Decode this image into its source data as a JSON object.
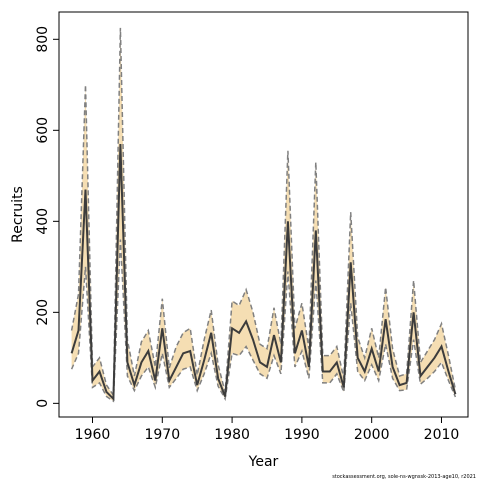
{
  "chart_data": {
    "type": "line",
    "title": "",
    "xlabel": "Year",
    "ylabel": "Recruits",
    "credit": "stockassessment.org, sole-ns-wgnssk-2013-age10, r2021",
    "xlim": [
      1955.2,
      2013.8
    ],
    "ylim": [
      -30,
      860
    ],
    "xticks": [
      1960,
      1970,
      1980,
      1990,
      2000,
      2010
    ],
    "yticks": [
      0,
      200,
      400,
      600,
      800
    ],
    "colors": {
      "band": "#f5deb3",
      "bounds": "#808080",
      "estimate": "#3c3c3c"
    },
    "x": [
      1957,
      1958,
      1959,
      1960,
      1961,
      1962,
      1963,
      1964,
      1965,
      1966,
      1967,
      1968,
      1969,
      1970,
      1971,
      1972,
      1973,
      1974,
      1975,
      1976,
      1977,
      1978,
      1979,
      1980,
      1981,
      1982,
      1983,
      1984,
      1985,
      1986,
      1987,
      1988,
      1989,
      1990,
      1991,
      1992,
      1993,
      1994,
      1995,
      1996,
      1997,
      1998,
      1999,
      2000,
      2001,
      2002,
      2003,
      2004,
      2005,
      2006,
      2007,
      2008,
      2009,
      2010,
      2011,
      2012
    ],
    "series": [
      {
        "values": [
          110,
          160,
          470,
          50,
          70,
          25,
          10,
          570,
          90,
          40,
          90,
          115,
          50,
          165,
          50,
          80,
          110,
          115,
          40,
          95,
          155,
          55,
          15,
          165,
          155,
          180,
          140,
          90,
          80,
          150,
          90,
          400,
          110,
          160,
          80,
          380,
          70,
          70,
          90,
          35,
          310,
          100,
          70,
          120,
          70,
          185,
          80,
          40,
          45,
          200,
          60,
          80,
          100,
          125,
          70,
          20
        ]
      },
      {
        "values": [
          75,
          110,
          300,
          35,
          45,
          15,
          5,
          360,
          60,
          28,
          60,
          80,
          35,
          110,
          35,
          55,
          75,
          80,
          28,
          65,
          110,
          38,
          10,
          110,
          105,
          125,
          95,
          65,
          55,
          105,
          65,
          290,
          80,
          115,
          55,
          270,
          45,
          45,
          65,
          25,
          220,
          70,
          50,
          85,
          50,
          130,
          55,
          28,
          30,
          140,
          42,
          55,
          70,
          90,
          50,
          14
        ]
      },
      {
        "values": [
          160,
          240,
          700,
          80,
          100,
          40,
          18,
          825,
          140,
          60,
          135,
          160,
          80,
          230,
          78,
          125,
          155,
          165,
          62,
          140,
          205,
          85,
          25,
          225,
          215,
          250,
          200,
          130,
          120,
          210,
          130,
          555,
          165,
          220,
          120,
          530,
          105,
          105,
          125,
          55,
          420,
          145,
          100,
          165,
          100,
          255,
          120,
          60,
          65,
          270,
          90,
          115,
          140,
          175,
          105,
          30
        ]
      }
    ]
  }
}
